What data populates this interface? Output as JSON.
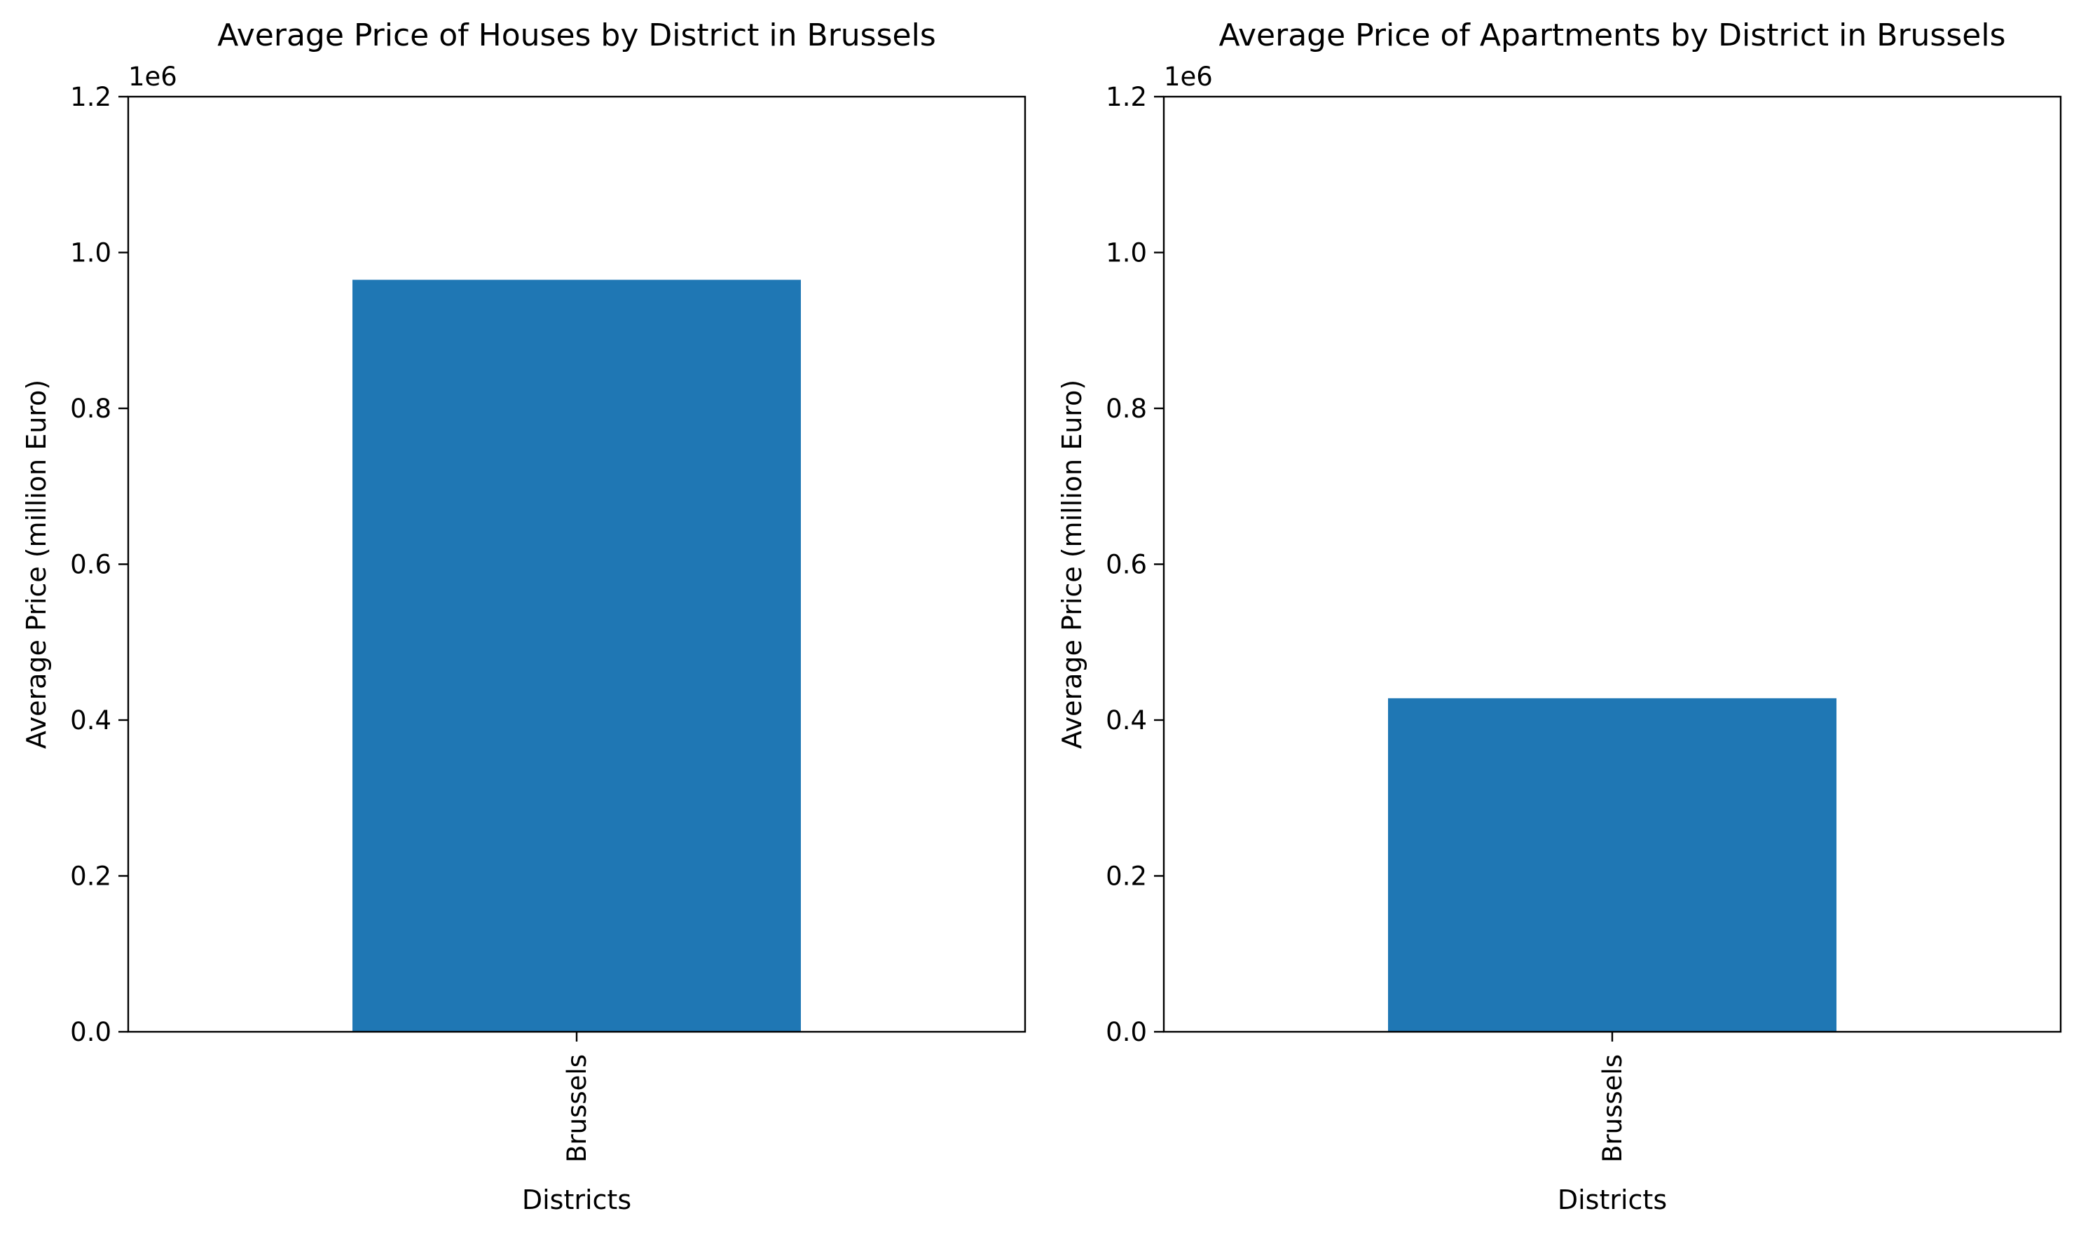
{
  "figure": {
    "background": "#ffffff",
    "bar_color": "#1f77b4"
  },
  "chart_data": [
    {
      "type": "bar",
      "title": "Average Price of Houses by District in Brussels",
      "xlabel": "Districts",
      "ylabel": "Average Price (million Euro)",
      "categories": [
        "Brussels"
      ],
      "values": [
        965000
      ],
      "ylim": [
        0,
        1200000
      ],
      "yticks": [
        0,
        200000,
        400000,
        600000,
        800000,
        1000000,
        1200000
      ],
      "ytick_labels": [
        "0.0",
        "0.2",
        "0.4",
        "0.6",
        "0.8",
        "1.0",
        "1.2"
      ],
      "y_offset_label": "1e6",
      "xtick_rotation": 90,
      "grid": false,
      "legend": "none"
    },
    {
      "type": "bar",
      "title": "Average Price of Apartments by District in Brussels",
      "xlabel": "Districts",
      "ylabel": "Average Price (million Euro)",
      "categories": [
        "Brussels"
      ],
      "values": [
        428000
      ],
      "ylim": [
        0,
        1200000
      ],
      "yticks": [
        0,
        200000,
        400000,
        600000,
        800000,
        1000000,
        1200000
      ],
      "ytick_labels": [
        "0.0",
        "0.2",
        "0.4",
        "0.6",
        "0.8",
        "1.0",
        "1.2"
      ],
      "y_offset_label": "1e6",
      "xtick_rotation": 90,
      "grid": false,
      "legend": "none"
    }
  ]
}
